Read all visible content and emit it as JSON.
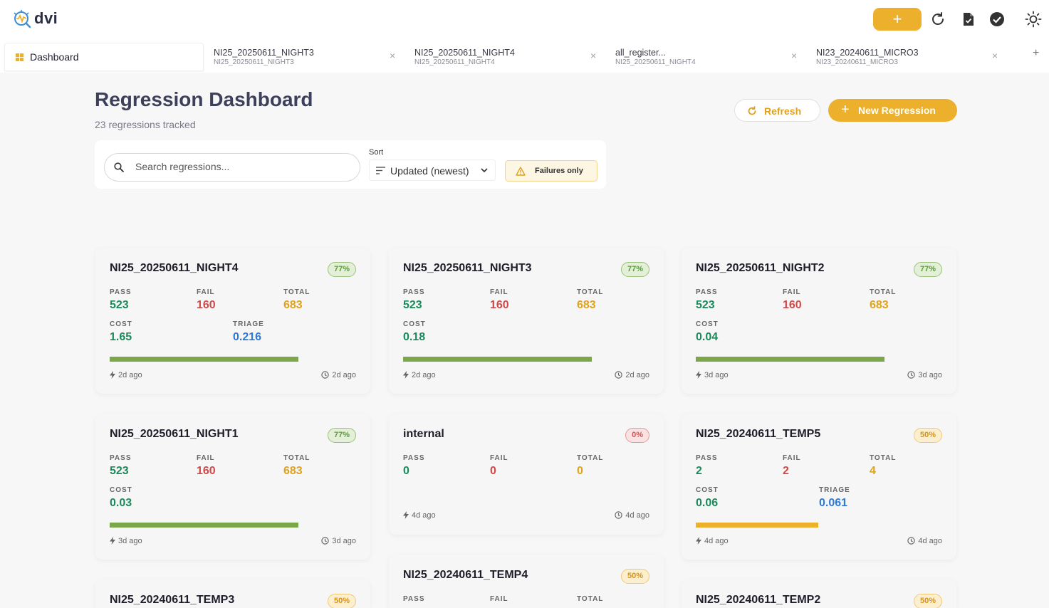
{
  "app": {
    "logo_text": "dvi",
    "add_label": "+"
  },
  "tabs": [
    {
      "label": "Dashboard"
    },
    {
      "title": "NI25_20250611_NIGHT3",
      "subtitle": "NI25_20250611_NIGHT3",
      "close": "×"
    },
    {
      "title": "NI25_20250611_NIGHT4",
      "subtitle": "NI25_20250611_NIGHT4",
      "close": "×"
    },
    {
      "title": "all_register...",
      "subtitle": "NI25_20250611_NIGHT4",
      "close": "×"
    },
    {
      "title": "NI23_20240611_MICRO3",
      "subtitle": "NI23_20240611_MICRO3",
      "close": "×"
    }
  ],
  "tab_add": "+",
  "header": {
    "title": "Regression Dashboard",
    "subtitle": "23 regressions tracked",
    "refresh_label": "Refresh",
    "new_label": "New Regression",
    "new_plus": "+"
  },
  "filters": {
    "search_placeholder": "Search regressions...",
    "sort_label": "Sort",
    "sort_value": "Updated (newest)",
    "failures_label": "Failures only"
  },
  "labels": {
    "pass": "PASS",
    "fail": "FAIL",
    "total": "TOTAL",
    "cost": "COST",
    "triage": "TRIAGE"
  },
  "colors": {
    "accent": "#edb02c",
    "pass": "#1a8a5a",
    "fail": "#d04848",
    "total": "#e0a21c",
    "triage": "#2d7ad6",
    "bar_green": "#7ca64a"
  },
  "cards": [
    {
      "name": "NI25_20250611_NIGHT4",
      "badge": "77%",
      "pass": "523",
      "fail": "160",
      "total": "683",
      "cost": "1.65",
      "triage": "0.216",
      "progress": 0.77,
      "left_time": "2d ago",
      "right_time": "2d ago"
    },
    {
      "name": "NI25_20250611_NIGHT3",
      "badge": "77%",
      "pass": "523",
      "fail": "160",
      "total": "683",
      "cost": "0.18",
      "progress": 0.77,
      "left_time": "2d ago",
      "right_time": "2d ago"
    },
    {
      "name": "NI25_20250611_NIGHT2",
      "badge": "77%",
      "pass": "523",
      "fail": "160",
      "total": "683",
      "cost": "0.04",
      "progress": 0.77,
      "left_time": "3d ago",
      "right_time": "3d ago"
    },
    {
      "name": "NI25_20250611_NIGHT1",
      "badge": "77%",
      "pass": "523",
      "fail": "160",
      "total": "683",
      "cost": "0.03",
      "progress": 0.77,
      "left_time": "3d ago",
      "right_time": "3d ago"
    },
    {
      "name": "internal",
      "badge": "0%",
      "pass": "0",
      "fail": "0",
      "total": "0",
      "left_time": "4d ago",
      "right_time": "4d ago"
    },
    {
      "name": "NI25_20240611_TEMP5",
      "badge": "50%",
      "pass": "2",
      "fail": "2",
      "total": "4",
      "cost": "0.06",
      "triage": "0.061",
      "progress": 0.5,
      "left_time": "4d ago",
      "right_time": "4d ago"
    },
    {
      "name": "NI25_20240611_TEMP3",
      "badge": "50%"
    },
    {
      "name": "NI25_20240611_TEMP4",
      "badge": "50%"
    },
    {
      "name": "NI25_20240611_TEMP2",
      "badge": "50%"
    }
  ]
}
